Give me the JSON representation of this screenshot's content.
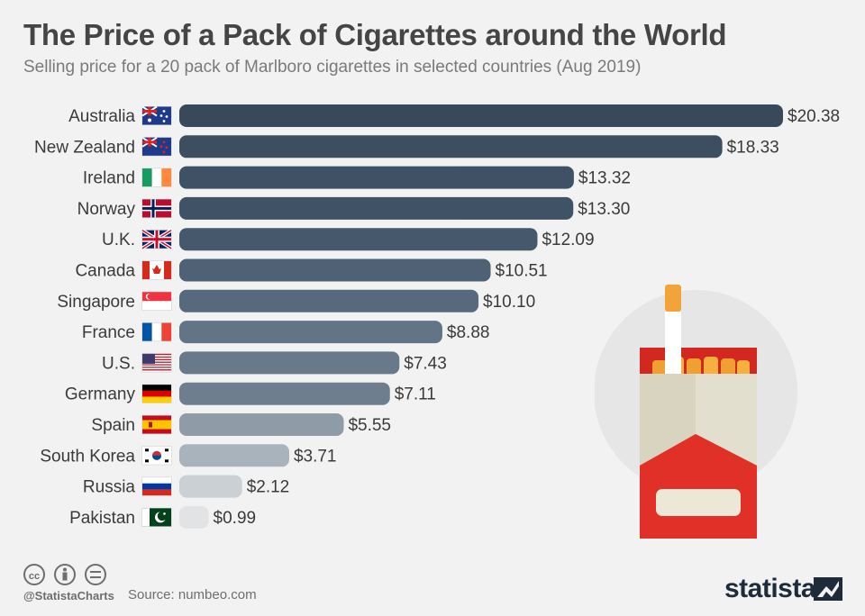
{
  "header": {
    "title": "The Price of a Pack of Cigarettes around the World",
    "subtitle": "Selling price for a 20 pack of Marlboro cigarettes in selected countries (Aug 2019)"
  },
  "chart_data": {
    "type": "bar",
    "orientation": "horizontal",
    "title": "The Price of a Pack of Cigarettes around the World",
    "subtitle": "Selling price for a 20 pack of Marlboro cigarettes in selected countries (Aug 2019)",
    "categories": [
      "Australia",
      "New Zealand",
      "Ireland",
      "Norway",
      "U.K.",
      "Canada",
      "Singapore",
      "France",
      "U.S.",
      "Germany",
      "Spain",
      "South Korea",
      "Russia",
      "Pakistan"
    ],
    "values": [
      20.38,
      18.33,
      13.32,
      13.3,
      12.09,
      10.51,
      10.1,
      8.88,
      7.43,
      7.11,
      5.55,
      3.71,
      2.12,
      0.99
    ],
    "value_labels": [
      "$20.38",
      "$18.33",
      "$13.32",
      "$13.30",
      "$12.09",
      "$10.51",
      "$10.10",
      "$8.88",
      "$7.43",
      "$7.11",
      "$5.55",
      "$3.71",
      "$2.12",
      "$0.99"
    ],
    "flags": [
      "australia-flag-icon",
      "new-zealand-flag-icon",
      "ireland-flag-icon",
      "norway-flag-icon",
      "uk-flag-icon",
      "canada-flag-icon",
      "singapore-flag-icon",
      "france-flag-icon",
      "us-flag-icon",
      "germany-flag-icon",
      "spain-flag-icon",
      "south-korea-flag-icon",
      "russia-flag-icon",
      "pakistan-flag-icon"
    ],
    "bar_colors": [
      "#37495b",
      "#3c4e60",
      "#3f5164",
      "#405366",
      "#46596c",
      "#4e6175",
      "#56697d",
      "#627586",
      "#68798a",
      "#6e7e8e",
      "#8f9ca8",
      "#a9b3bc",
      "#cbd0d5",
      "#e1e3e5"
    ],
    "xlim": [
      0,
      20.38
    ],
    "xlabel": "",
    "ylabel": "",
    "grid": false,
    "legend": "none"
  },
  "footer": {
    "handle": "@StatistaCharts",
    "source": "Source: numbeo.com",
    "brand": "statista",
    "license_icons": [
      "cc-icon",
      "by-icon",
      "nd-icon"
    ]
  },
  "illustration": {
    "name": "marlboro-pack-illustration",
    "colors": {
      "pack_red": "#e03027",
      "pack_cream": "#e0dccb",
      "filter_orange": "#f0a030",
      "circle": "#e6e6e6"
    }
  }
}
